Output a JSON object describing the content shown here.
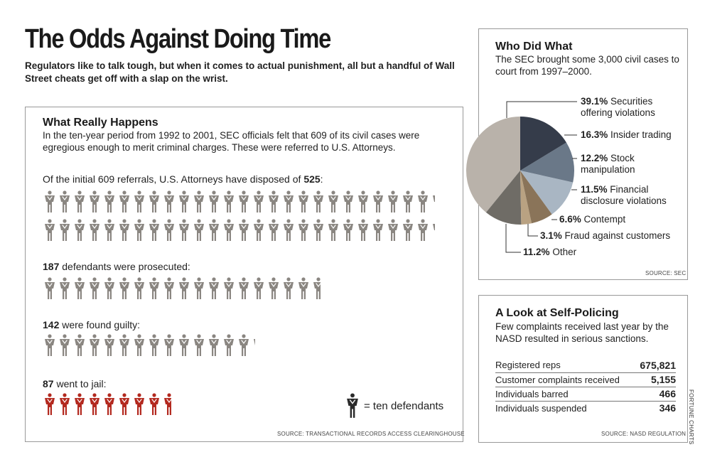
{
  "title": "The Odds Against Doing Time",
  "subtitle": "Regulators like to talk tough, but when it comes to actual punishment, all but a handful of Wall Street cheats get off with a slap on the wrist.",
  "what_really_happens": {
    "heading": "What Really Happens",
    "intro": "In the ten-year period from 1992 to 2001, SEC officials felt that 609 of its civil cases were egregious enough to merit criminal charges. These were referred to U.S. Attorneys.",
    "rows": [
      {
        "label_pre": "Of the initial 609 referrals, U.S. Attorneys have disposed of ",
        "label_bold": "525",
        "label_post": ":",
        "count": 525,
        "color": "#8a8681"
      },
      {
        "label_pre": "",
        "label_bold": "187",
        "label_post": " defendants were prosecuted:",
        "count": 187,
        "color": "#8a8681"
      },
      {
        "label_pre": "",
        "label_bold": "142",
        "label_post": " were found guilty:",
        "count": 142,
        "color": "#8a8681"
      },
      {
        "label_pre": "",
        "label_bold": "87",
        "label_post": " went to jail:",
        "count": 87,
        "color": "#b3291f"
      }
    ],
    "legend_text": "= ten defendants",
    "legend_icon": "person-icon",
    "source": "SOURCE: TRANSACTIONAL RECORDS ACCESS CLEARINGHOUSE"
  },
  "who_did_what": {
    "heading": "Who Did What",
    "intro": "The SEC brought some 3,000 civil cases to court from 1997–2000.",
    "source": "SOURCE: SEC"
  },
  "chart_data": {
    "type": "pie",
    "title": "Who Did What",
    "slices": [
      {
        "pct": "16.3%",
        "label": "Insider trading",
        "value": 16.3,
        "color": "#353c4a"
      },
      {
        "pct": "12.2%",
        "label": "Stock manipulation",
        "value": 12.2,
        "color": "#6a7888"
      },
      {
        "pct": "11.5%",
        "label": "Financial disclosure violations",
        "value": 11.5,
        "color": "#a9b6c3"
      },
      {
        "pct": "6.6%",
        "label": "Contempt",
        "value": 6.6,
        "color": "#8a7459"
      },
      {
        "pct": "3.1%",
        "label": "Fraud against customers",
        "value": 3.1,
        "color": "#b9a282"
      },
      {
        "pct": "11.2%",
        "label": "Other",
        "value": 11.2,
        "color": "#6f6c66"
      },
      {
        "pct": "39.1%",
        "label": "Securities offering violations",
        "value": 39.1,
        "color": "#b9b2aa"
      }
    ]
  },
  "self_policing": {
    "heading": "A Look at Self-Policing",
    "intro": "Few complaints received last year by the NASD resulted in serious sanctions.",
    "rows": [
      {
        "label": "Registered reps",
        "value": "675,821"
      },
      {
        "label": "Customer complaints received",
        "value": "5,155"
      },
      {
        "label": "Individuals barred",
        "value": "466"
      },
      {
        "label": "Individuals suspended",
        "value": "346"
      }
    ],
    "source": "SOURCE: NASD REGULATION"
  },
  "credit": "FORTUNE CHARTS"
}
